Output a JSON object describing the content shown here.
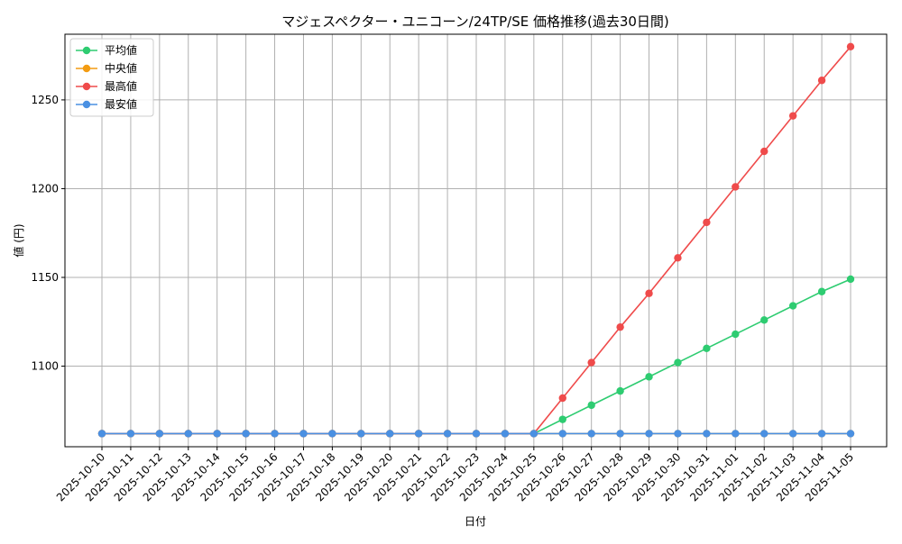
{
  "chart_data": {
    "type": "line",
    "title": "マジェスペクター・ユニコーン/24TP/SE 価格推移(過去30日間)",
    "xlabel": "日付",
    "ylabel": "値 (円)",
    "categories": [
      "2025-10-10",
      "2025-10-11",
      "2025-10-12",
      "2025-10-13",
      "2025-10-14",
      "2025-10-15",
      "2025-10-16",
      "2025-10-17",
      "2025-10-18",
      "2025-10-19",
      "2025-10-20",
      "2025-10-21",
      "2025-10-22",
      "2025-10-23",
      "2025-10-24",
      "2025-10-25",
      "2025-10-26",
      "2025-10-27",
      "2025-10-28",
      "2025-10-29",
      "2025-10-30",
      "2025-10-31",
      "2025-11-01",
      "2025-11-02",
      "2025-11-03",
      "2025-11-04",
      "2025-11-05"
    ],
    "ylim": [
      1054.6,
      1287.0
    ],
    "yticks": [
      1100,
      1150,
      1200,
      1250
    ],
    "grid": true,
    "legend_position": "top-left",
    "series": [
      {
        "name": "平均値",
        "color": "#2ecc71",
        "values": [
          1062,
          1062,
          1062,
          1062,
          1062,
          1062,
          1062,
          1062,
          1062,
          1062,
          1062,
          1062,
          1062,
          1062,
          1062,
          1062,
          1070,
          1078,
          1086,
          1094,
          1102,
          1110,
          1118,
          1126,
          1134,
          1142,
          1149
        ]
      },
      {
        "name": "中央値",
        "color": "#f39c12",
        "values": [
          1062,
          1062,
          1062,
          1062,
          1062,
          1062,
          1062,
          1062,
          1062,
          1062,
          1062,
          1062,
          1062,
          1062,
          1062,
          1062,
          1062,
          1062,
          1062,
          1062,
          1062,
          1062,
          1062,
          1062,
          1062,
          1062,
          1062
        ]
      },
      {
        "name": "最高値",
        "color": "#ef4b4b",
        "values": [
          1062,
          1062,
          1062,
          1062,
          1062,
          1062,
          1062,
          1062,
          1062,
          1062,
          1062,
          1062,
          1062,
          1062,
          1062,
          1062,
          1082,
          1102,
          1122,
          1141,
          1161,
          1181,
          1201,
          1221,
          1241,
          1261,
          1280
        ]
      },
      {
        "name": "最安値",
        "color": "#4a90e2",
        "values": [
          1062,
          1062,
          1062,
          1062,
          1062,
          1062,
          1062,
          1062,
          1062,
          1062,
          1062,
          1062,
          1062,
          1062,
          1062,
          1062,
          1062,
          1062,
          1062,
          1062,
          1062,
          1062,
          1062,
          1062,
          1062,
          1062,
          1062
        ]
      }
    ]
  }
}
